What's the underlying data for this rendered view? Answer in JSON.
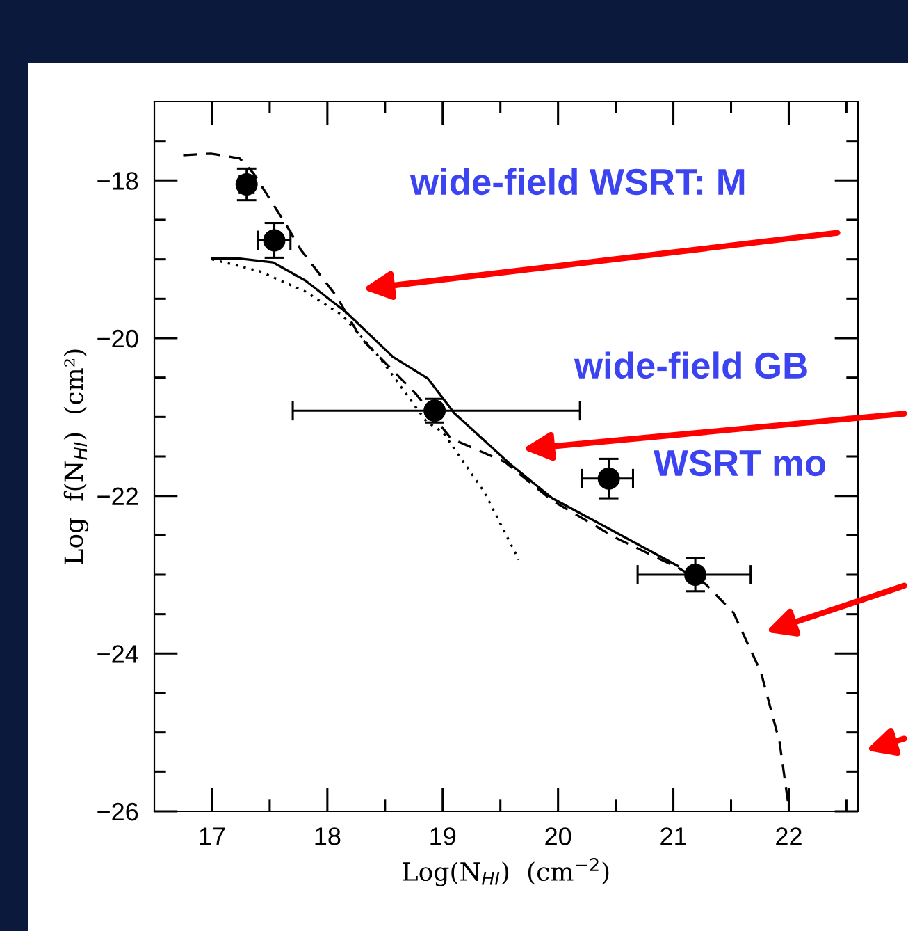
{
  "chart_data": {
    "type": "line",
    "xlabel": "Log(N$_{HI}$)  (cm$^{−2}$)",
    "ylabel": "Log  f(N$_{HI}$)  (cm²)",
    "xlim": [
      16.5,
      22.6
    ],
    "ylim": [
      -26,
      -17
    ],
    "xticks": [
      17,
      {
        "value": 17.5,
        "label": null
      },
      18,
      {
        "value": 18.5,
        "label": null
      },
      19,
      {
        "value": 19.5,
        "label": null
      },
      20,
      {
        "value": 20.5,
        "label": null
      },
      21,
      {
        "value": 21.5,
        "label": null
      },
      22,
      {
        "value": 22.5,
        "label": null
      }
    ],
    "yticks": [
      {
        "value": -26,
        "label": "−26"
      },
      {
        "value": -25.5,
        "label": null
      },
      {
        "value": -25,
        "label": null
      },
      {
        "value": -24.5,
        "label": null
      },
      {
        "value": -24,
        "label": "−24"
      },
      {
        "value": -23.5,
        "label": null
      },
      {
        "value": -23,
        "label": null
      },
      {
        "value": -22.5,
        "label": null
      },
      {
        "value": -22,
        "label": "−22"
      },
      {
        "value": -21.5,
        "label": null
      },
      {
        "value": -21,
        "label": null
      },
      {
        "value": -20.5,
        "label": null
      },
      {
        "value": -20,
        "label": "−20"
      },
      {
        "value": -19.5,
        "label": null
      },
      {
        "value": -19,
        "label": null
      },
      {
        "value": -18.5,
        "label": null
      },
      {
        "value": -18,
        "label": "−18"
      },
      {
        "value": -17.5,
        "label": null
      }
    ],
    "grid": false,
    "legend": false,
    "series": [
      {
        "type": "line",
        "line_style": "solid",
        "color": "#000000",
        "x": [
          17.0,
          17.24,
          17.53,
          17.81,
          18.17,
          18.57,
          18.87,
          19.1,
          19.58,
          19.95,
          20.51,
          21.04
        ],
        "values": [
          -18.99,
          -18.99,
          -19.04,
          -19.27,
          -19.68,
          -20.24,
          -20.51,
          -20.95,
          -21.59,
          -22.03,
          -22.47,
          -22.89
        ]
      },
      {
        "type": "line",
        "line_style": "dotted",
        "color": "#000000",
        "x": [
          17.0,
          17.41,
          17.81,
          18.13,
          18.45,
          18.86,
          19.0,
          19.36,
          19.66
        ],
        "values": [
          -19.0,
          -19.15,
          -19.41,
          -19.71,
          -20.24,
          -21.06,
          -21.19,
          -21.95,
          -22.81
        ]
      },
      {
        "type": "line",
        "line_style": "dashed",
        "color": "#000000",
        "x": [
          16.75,
          16.99,
          17.24,
          17.36,
          17.65,
          17.77,
          18.08,
          18.29,
          18.77,
          19.07,
          19.54,
          19.95,
          20.51,
          21.04,
          21.28,
          21.52,
          21.76,
          21.92,
          22.0
        ],
        "values": [
          -17.68,
          -17.66,
          -17.72,
          -17.91,
          -18.58,
          -18.88,
          -19.47,
          -20.0,
          -20.71,
          -21.27,
          -21.57,
          -22.06,
          -22.54,
          -22.91,
          -23.12,
          -23.48,
          -24.24,
          -25.12,
          -25.95
        ]
      },
      {
        "type": "scatter",
        "marker": "circle",
        "color": "#000000",
        "x": [
          17.3,
          17.54,
          18.93,
          20.44,
          21.19
        ],
        "values": [
          -18.05,
          -18.76,
          -20.92,
          -21.78,
          -23.0
        ],
        "errors": [
          0.2,
          0.22,
          0.15,
          0.25,
          0.21
        ],
        "xerrors": [
          0.06,
          0.14,
          [
            17.7,
            20.19
          ],
          [
            20.21,
            20.65
          ],
          [
            20.69,
            21.67
          ]
        ]
      }
    ],
    "annotations": [
      "wide-field WSRT: M",
      "wide-field GB",
      "WSRT mo"
    ]
  }
}
